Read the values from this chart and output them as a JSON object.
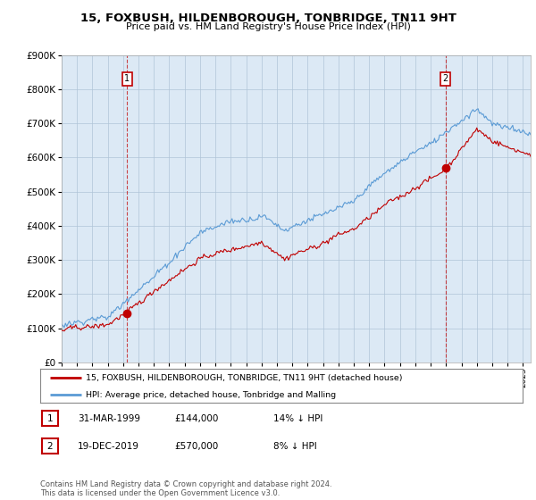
{
  "title": "15, FOXBUSH, HILDENBOROUGH, TONBRIDGE, TN11 9HT",
  "subtitle": "Price paid vs. HM Land Registry's House Price Index (HPI)",
  "ylim": [
    0,
    900000
  ],
  "xlim_start": 1995.0,
  "xlim_end": 2025.5,
  "hpi_color": "#5b9bd5",
  "price_color": "#c00000",
  "marker1_x": 1999.25,
  "marker1_y": 144000,
  "marker2_x": 2019.97,
  "marker2_y": 570000,
  "legend_line1": "15, FOXBUSH, HILDENBOROUGH, TONBRIDGE, TN11 9HT (detached house)",
  "legend_line2": "HPI: Average price, detached house, Tonbridge and Malling",
  "annotation1_date": "31-MAR-1999",
  "annotation1_price": "£144,000",
  "annotation1_hpi": "14% ↓ HPI",
  "annotation2_date": "19-DEC-2019",
  "annotation2_price": "£570,000",
  "annotation2_hpi": "8% ↓ HPI",
  "footnote": "Contains HM Land Registry data © Crown copyright and database right 2024.\nThis data is licensed under the Open Government Licence v3.0.",
  "background_color": "#ffffff",
  "plot_bg_color": "#dce9f5",
  "grid_color": "#b0c4d8"
}
